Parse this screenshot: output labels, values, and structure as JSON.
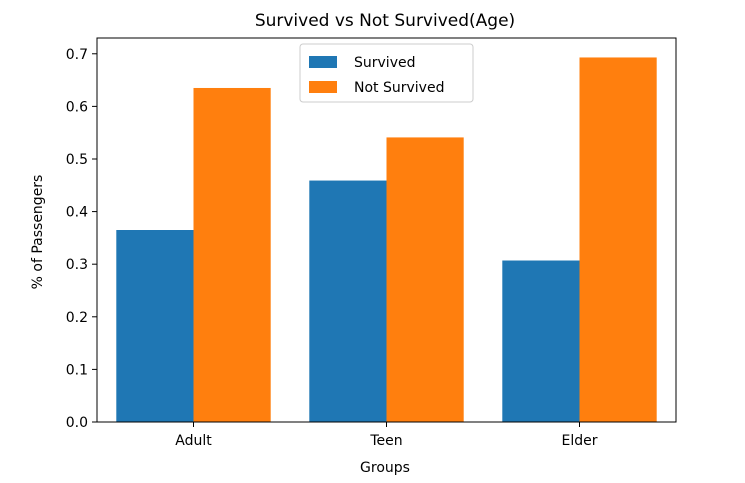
{
  "chart_data": {
    "type": "bar",
    "title": "Survived vs Not Survived(Age)",
    "xlabel": "Groups",
    "ylabel": "% of Passengers",
    "categories": [
      "Adult",
      "Teen",
      "Elder"
    ],
    "series": [
      {
        "name": "Survived",
        "values": [
          0.365,
          0.459,
          0.307
        ],
        "color": "#1f77b4"
      },
      {
        "name": "Not Survived",
        "values": [
          0.635,
          0.541,
          0.693
        ],
        "color": "#ff7f0e"
      }
    ],
    "ylim": [
      0,
      0.73
    ],
    "yticks": [
      "0.0",
      "0.1",
      "0.2",
      "0.3",
      "0.4",
      "0.5",
      "0.6",
      "0.7"
    ],
    "grid": false,
    "legend_position": "upper center"
  }
}
